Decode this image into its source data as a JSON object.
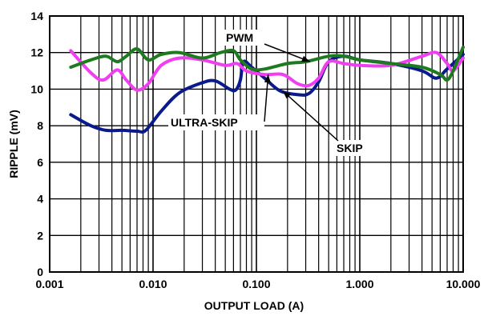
{
  "chart_data": {
    "type": "line",
    "xlabel": "OUTPUT LOAD (A)",
    "ylabel": "RIPPLE (mV)",
    "x_scale": "log",
    "xlim": [
      0.001,
      10
    ],
    "ylim": [
      0,
      14
    ],
    "grid": true,
    "x_ticks": [
      {
        "value": 0.001,
        "label": "0.001"
      },
      {
        "value": 0.01,
        "label": "0.010"
      },
      {
        "value": 0.1,
        "label": "0.100"
      },
      {
        "value": 1,
        "label": "1.000"
      },
      {
        "value": 10,
        "label": "10.000"
      }
    ],
    "y_ticks": [
      {
        "value": 0,
        "label": "0"
      },
      {
        "value": 2,
        "label": "2"
      },
      {
        "value": 4,
        "label": "4"
      },
      {
        "value": 6,
        "label": "6"
      },
      {
        "value": 8,
        "label": "8"
      },
      {
        "value": 10,
        "label": "10"
      },
      {
        "value": 12,
        "label": "12"
      },
      {
        "value": 14,
        "label": "14"
      }
    ],
    "series": [
      {
        "name": "ULTRA-SKIP",
        "color": "#0a1a8c",
        "points": [
          [
            0.0016,
            8.6
          ],
          [
            0.0025,
            8.0
          ],
          [
            0.0035,
            7.75
          ],
          [
            0.005,
            7.75
          ],
          [
            0.007,
            7.7
          ],
          [
            0.0085,
            7.75
          ],
          [
            0.012,
            8.8
          ],
          [
            0.018,
            9.8
          ],
          [
            0.03,
            10.35
          ],
          [
            0.04,
            10.45
          ],
          [
            0.055,
            10.0
          ],
          [
            0.063,
            9.95
          ],
          [
            0.07,
            10.5
          ],
          [
            0.075,
            11.5
          ],
          [
            0.09,
            11.2
          ],
          [
            0.12,
            10.6
          ],
          [
            0.17,
            9.9
          ],
          [
            0.25,
            9.7
          ],
          [
            0.32,
            9.75
          ],
          [
            0.4,
            10.4
          ],
          [
            0.5,
            11.5
          ],
          [
            0.7,
            11.8
          ],
          [
            1.0,
            11.6
          ],
          [
            2.0,
            11.4
          ],
          [
            4.0,
            11.0
          ],
          [
            5.5,
            10.6
          ],
          [
            7.0,
            11.1
          ],
          [
            10.0,
            11.9
          ]
        ]
      },
      {
        "name": "SKIP",
        "color": "#f03ff0",
        "points": [
          [
            0.0016,
            12.1
          ],
          [
            0.0025,
            10.9
          ],
          [
            0.0033,
            10.5
          ],
          [
            0.0045,
            11.05
          ],
          [
            0.0055,
            10.5
          ],
          [
            0.007,
            9.95
          ],
          [
            0.009,
            10.3
          ],
          [
            0.012,
            11.3
          ],
          [
            0.018,
            11.7
          ],
          [
            0.03,
            11.6
          ],
          [
            0.05,
            11.3
          ],
          [
            0.065,
            11.4
          ],
          [
            0.08,
            11.0
          ],
          [
            0.12,
            10.8
          ],
          [
            0.18,
            10.8
          ],
          [
            0.25,
            10.3
          ],
          [
            0.32,
            10.2
          ],
          [
            0.4,
            10.6
          ],
          [
            0.5,
            11.5
          ],
          [
            0.7,
            11.4
          ],
          [
            1.0,
            11.3
          ],
          [
            2.0,
            11.3
          ],
          [
            4.0,
            11.8
          ],
          [
            5.5,
            12.0
          ],
          [
            7.0,
            11.4
          ],
          [
            8.0,
            11.0
          ],
          [
            10.0,
            11.7
          ]
        ]
      },
      {
        "name": "PWM",
        "color": "#1e7a1e",
        "points": [
          [
            0.0016,
            11.2
          ],
          [
            0.0025,
            11.6
          ],
          [
            0.0035,
            11.8
          ],
          [
            0.0045,
            11.5
          ],
          [
            0.0055,
            11.8
          ],
          [
            0.007,
            12.2
          ],
          [
            0.009,
            11.6
          ],
          [
            0.012,
            11.9
          ],
          [
            0.018,
            12.0
          ],
          [
            0.03,
            11.7
          ],
          [
            0.045,
            12.0
          ],
          [
            0.06,
            12.1
          ],
          [
            0.07,
            11.6
          ],
          [
            0.09,
            11.1
          ],
          [
            0.12,
            11.1
          ],
          [
            0.2,
            11.4
          ],
          [
            0.3,
            11.5
          ],
          [
            0.5,
            11.8
          ],
          [
            0.7,
            11.8
          ],
          [
            1.0,
            11.6
          ],
          [
            2.0,
            11.4
          ],
          [
            4.0,
            11.2
          ],
          [
            6.0,
            10.8
          ],
          [
            7.0,
            10.5
          ],
          [
            8.0,
            11.0
          ],
          [
            10.0,
            12.3
          ]
        ]
      }
    ],
    "annotations": [
      {
        "text": "PWM",
        "target_series": "PWM",
        "at": [
          0.33,
          11.5
        ]
      },
      {
        "text": "ULTRA-SKIP",
        "target_series": "ULTRA-SKIP",
        "at": [
          0.13,
          10.8
        ]
      },
      {
        "text": "SKIP",
        "target_series": "SKIP",
        "at": [
          0.18,
          9.9
        ]
      }
    ]
  }
}
